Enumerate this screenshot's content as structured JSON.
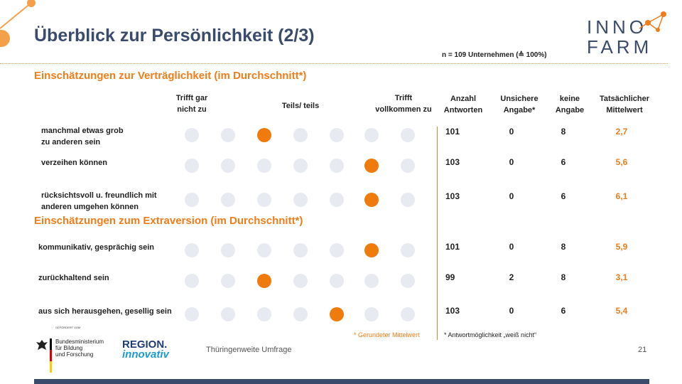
{
  "title": "Überblick zur Persönlichkeit (2/3)",
  "sample_note": "n = 109 Unternehmen (≙ 100%)",
  "logo": {
    "line1": "INNO",
    "line2": "FARM"
  },
  "section1": "Einschätzungen zur Verträglichkeit (im Durchschnitt*)",
  "section2": "Einschätzungen zum Extraversion (im Durchschnitt*)",
  "scale_labels": {
    "left": [
      "Trifft gar",
      "nicht zu"
    ],
    "middle": "Teils/ teils",
    "right": [
      "Trifft",
      "vollkommen zu"
    ]
  },
  "columns": {
    "anzahl": [
      "Anzahl",
      "Antworten"
    ],
    "unsicher": [
      "Unsichere",
      "Angabe*"
    ],
    "keine": [
      "keine",
      "Angabe"
    ],
    "mittelwert": [
      "Tatsächlicher",
      "Mittelwert"
    ]
  },
  "rows": [
    {
      "label": [
        "manchmal  etwas grob",
        "zu anderen sein"
      ],
      "selected": 3,
      "anzahl": "101",
      "unsicher": "0",
      "keine": "8",
      "mittelwert": "2,7"
    },
    {
      "label": [
        "verzeihen können"
      ],
      "selected": 6,
      "anzahl": "103",
      "unsicher": "0",
      "keine": "6",
      "mittelwert": "5,6"
    },
    {
      "label": [
        "rücksichtsvoll  u. freundlich mit",
        "anderen umgehen können"
      ],
      "selected": 6,
      "anzahl": "103",
      "unsicher": "0",
      "keine": "6",
      "mittelwert": "6,1"
    },
    {
      "label": [
        "kommunikativ,  gesprächig  sein"
      ],
      "selected": 6,
      "anzahl": "101",
      "unsicher": "0",
      "keine": "8",
      "mittelwert": "5,9"
    },
    {
      "label": [
        "zurückhaltend  sein"
      ],
      "selected": 3,
      "anzahl": "99",
      "unsicher": "2",
      "keine": "8",
      "mittelwert": "3,1"
    },
    {
      "label": [
        "aus sich herausgehen, gesellig  sein"
      ],
      "selected": 5,
      "anzahl": "103",
      "unsicher": "0",
      "keine": "6",
      "mittelwert": "5,4"
    }
  ],
  "footnote_rounded": "Gerundeter Mittelwert",
  "footnote_star": "Antwortmöglichkeit „weiß nicht“",
  "funder": {
    "gefoerdert": "GEFÖRDERT VOM",
    "ministry": [
      "Bundesministerium",
      "für Bildung",
      "und Forschung"
    ]
  },
  "region_logo": {
    "line1": "REGION.",
    "line2": "innovativ"
  },
  "footer_text": "Thüringenweite Umfrage",
  "page_number": "21",
  "colors": {
    "accent": "#ef7d1a",
    "title": "#3b4b6b",
    "dot": "#e7eaf1"
  }
}
